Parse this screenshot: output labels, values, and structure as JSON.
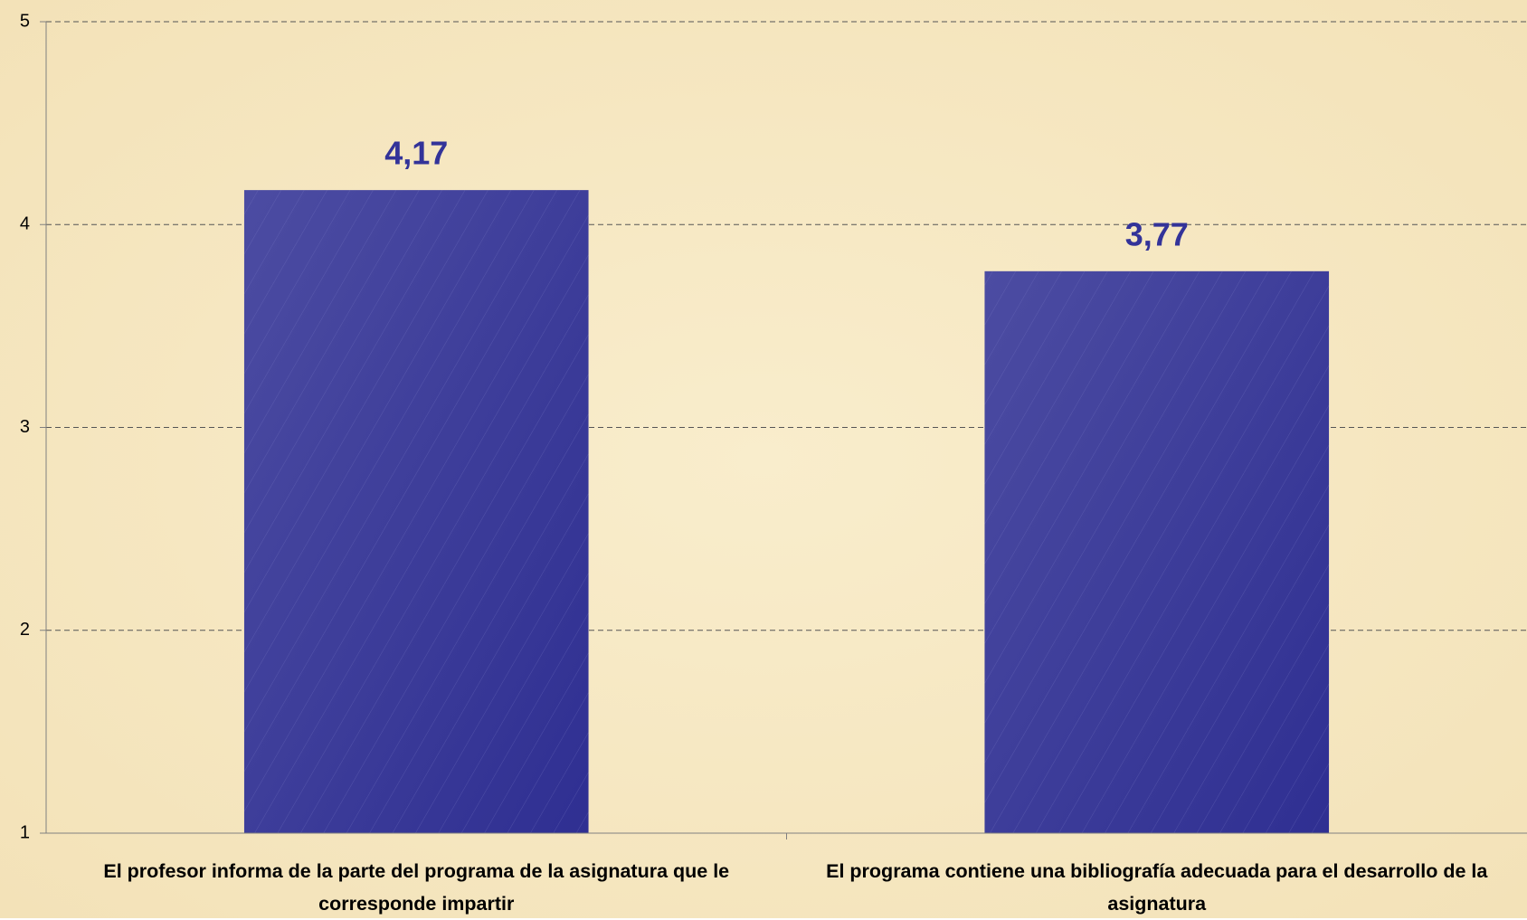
{
  "chart_data": {
    "type": "bar",
    "categories": [
      "El profesor informa de la parte del programa de la asignatura que le corresponde impartir",
      "El programa contiene una bibliografía adecuada para el desarrollo de la asignatura"
    ],
    "values": [
      4.17,
      3.77
    ],
    "value_labels": [
      "4,17",
      "3,77"
    ],
    "color": "#3a3a9c",
    "ylim": [
      1,
      5
    ],
    "yticks": [
      1,
      2,
      3,
      4,
      5
    ],
    "grid": true
  }
}
